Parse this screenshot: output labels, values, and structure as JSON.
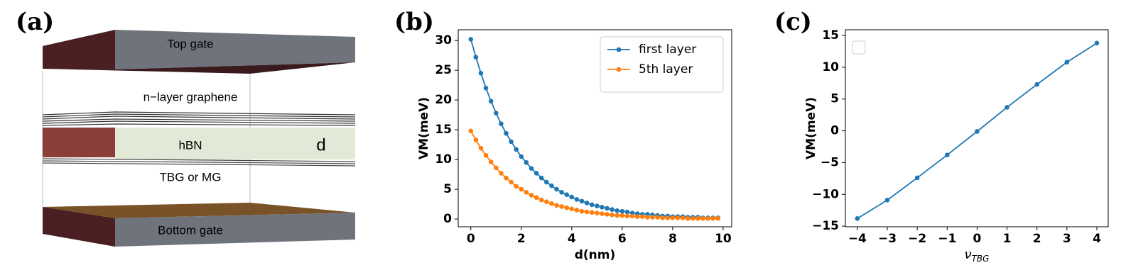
{
  "diagram": {
    "panel_label": "(a)",
    "labels": [
      "Top gate",
      "n−layer graphene",
      "hBN",
      "d",
      "TBG or MG",
      "Bottom gate"
    ]
  },
  "chart_data": [
    {
      "type": "line",
      "panel_label": "(b)",
      "xlabel": "d(nm)",
      "ylabel": "VM(meV)",
      "x": [
        0,
        0.2,
        0.4,
        0.6,
        0.8,
        1.0,
        1.2,
        1.4,
        1.6,
        1.8,
        2.0,
        2.2,
        2.4,
        2.6,
        2.8,
        3.0,
        3.2,
        3.4,
        3.6,
        3.8,
        4.0,
        4.2,
        4.4,
        4.6,
        4.8,
        5.0,
        5.2,
        5.4,
        5.6,
        5.8,
        6.0,
        6.2,
        6.4,
        6.6,
        6.8,
        7.0,
        7.2,
        7.4,
        7.6,
        7.8,
        8.0,
        8.2,
        8.4,
        8.6,
        8.8,
        9.0,
        9.2,
        9.4,
        9.6,
        9.8
      ],
      "series": [
        {
          "name": "first layer",
          "color": "#1f77b4",
          "values": [
            30.2,
            27.2,
            24.5,
            22.0,
            19.8,
            17.8,
            16.0,
            14.4,
            13.0,
            11.7,
            10.5,
            9.5,
            8.5,
            7.7,
            6.9,
            6.2,
            5.6,
            5.0,
            4.5,
            4.1,
            3.7,
            3.3,
            3.0,
            2.7,
            2.4,
            2.2,
            2.0,
            1.8,
            1.6,
            1.4,
            1.3,
            1.2,
            1.0,
            0.9,
            0.8,
            0.8,
            0.7,
            0.6,
            0.5,
            0.5,
            0.4,
            0.4,
            0.4,
            0.3,
            0.3,
            0.3,
            0.2,
            0.2,
            0.2,
            0.2
          ]
        },
        {
          "name": "5th layer",
          "color": "#ff7f0e",
          "values": [
            14.8,
            13.3,
            11.9,
            10.7,
            9.6,
            8.6,
            7.7,
            6.9,
            6.2,
            5.5,
            5.0,
            4.5,
            4.0,
            3.6,
            3.2,
            2.9,
            2.6,
            2.3,
            2.1,
            1.9,
            1.7,
            1.5,
            1.3,
            1.2,
            1.1,
            1.0,
            0.9,
            0.8,
            0.7,
            0.6,
            0.6,
            0.5,
            0.5,
            0.4,
            0.4,
            0.3,
            0.3,
            0.3,
            0.2,
            0.2,
            0.2,
            0.2,
            0.2,
            0.1,
            0.1,
            0.1,
            0.1,
            0.1,
            0.1,
            0.1
          ]
        }
      ],
      "xlim": [
        -0.5,
        10.34
      ],
      "ylim": [
        -1.3,
        31.8
      ],
      "xticks": [
        0,
        2,
        4,
        6,
        8,
        10
      ],
      "yticks": [
        0,
        5,
        10,
        15,
        20,
        25,
        30
      ],
      "legend": "upper right",
      "grid": false
    },
    {
      "type": "line",
      "panel_label": "(c)",
      "xlabel": "ν",
      "xlabel_sub": "TBG",
      "ylabel": "VM(meV)",
      "x": [
        -4,
        -3,
        -2,
        -1,
        0,
        1,
        2,
        3,
        4
      ],
      "series": [
        {
          "color": "#1f77b4",
          "values": [
            -13.8,
            -10.9,
            -7.4,
            -3.8,
            -0.1,
            3.7,
            7.3,
            10.8,
            13.8
          ]
        }
      ],
      "xlim": [
        -4.4,
        4.38
      ],
      "ylim": [
        -15.1,
        15.9
      ],
      "xticks": [
        {
          "value": -4,
          "label": "−4"
        },
        {
          "value": -3,
          "label": "−3"
        },
        {
          "value": -2,
          "label": "−2"
        },
        {
          "value": -1,
          "label": "−1"
        },
        0,
        1,
        2,
        3,
        4
      ],
      "yticks": [
        {
          "value": -15,
          "label": "−15"
        },
        {
          "value": -10,
          "label": "−10"
        },
        {
          "value": -5,
          "label": "−5"
        },
        0,
        5,
        10,
        15
      ],
      "grid": false
    }
  ]
}
